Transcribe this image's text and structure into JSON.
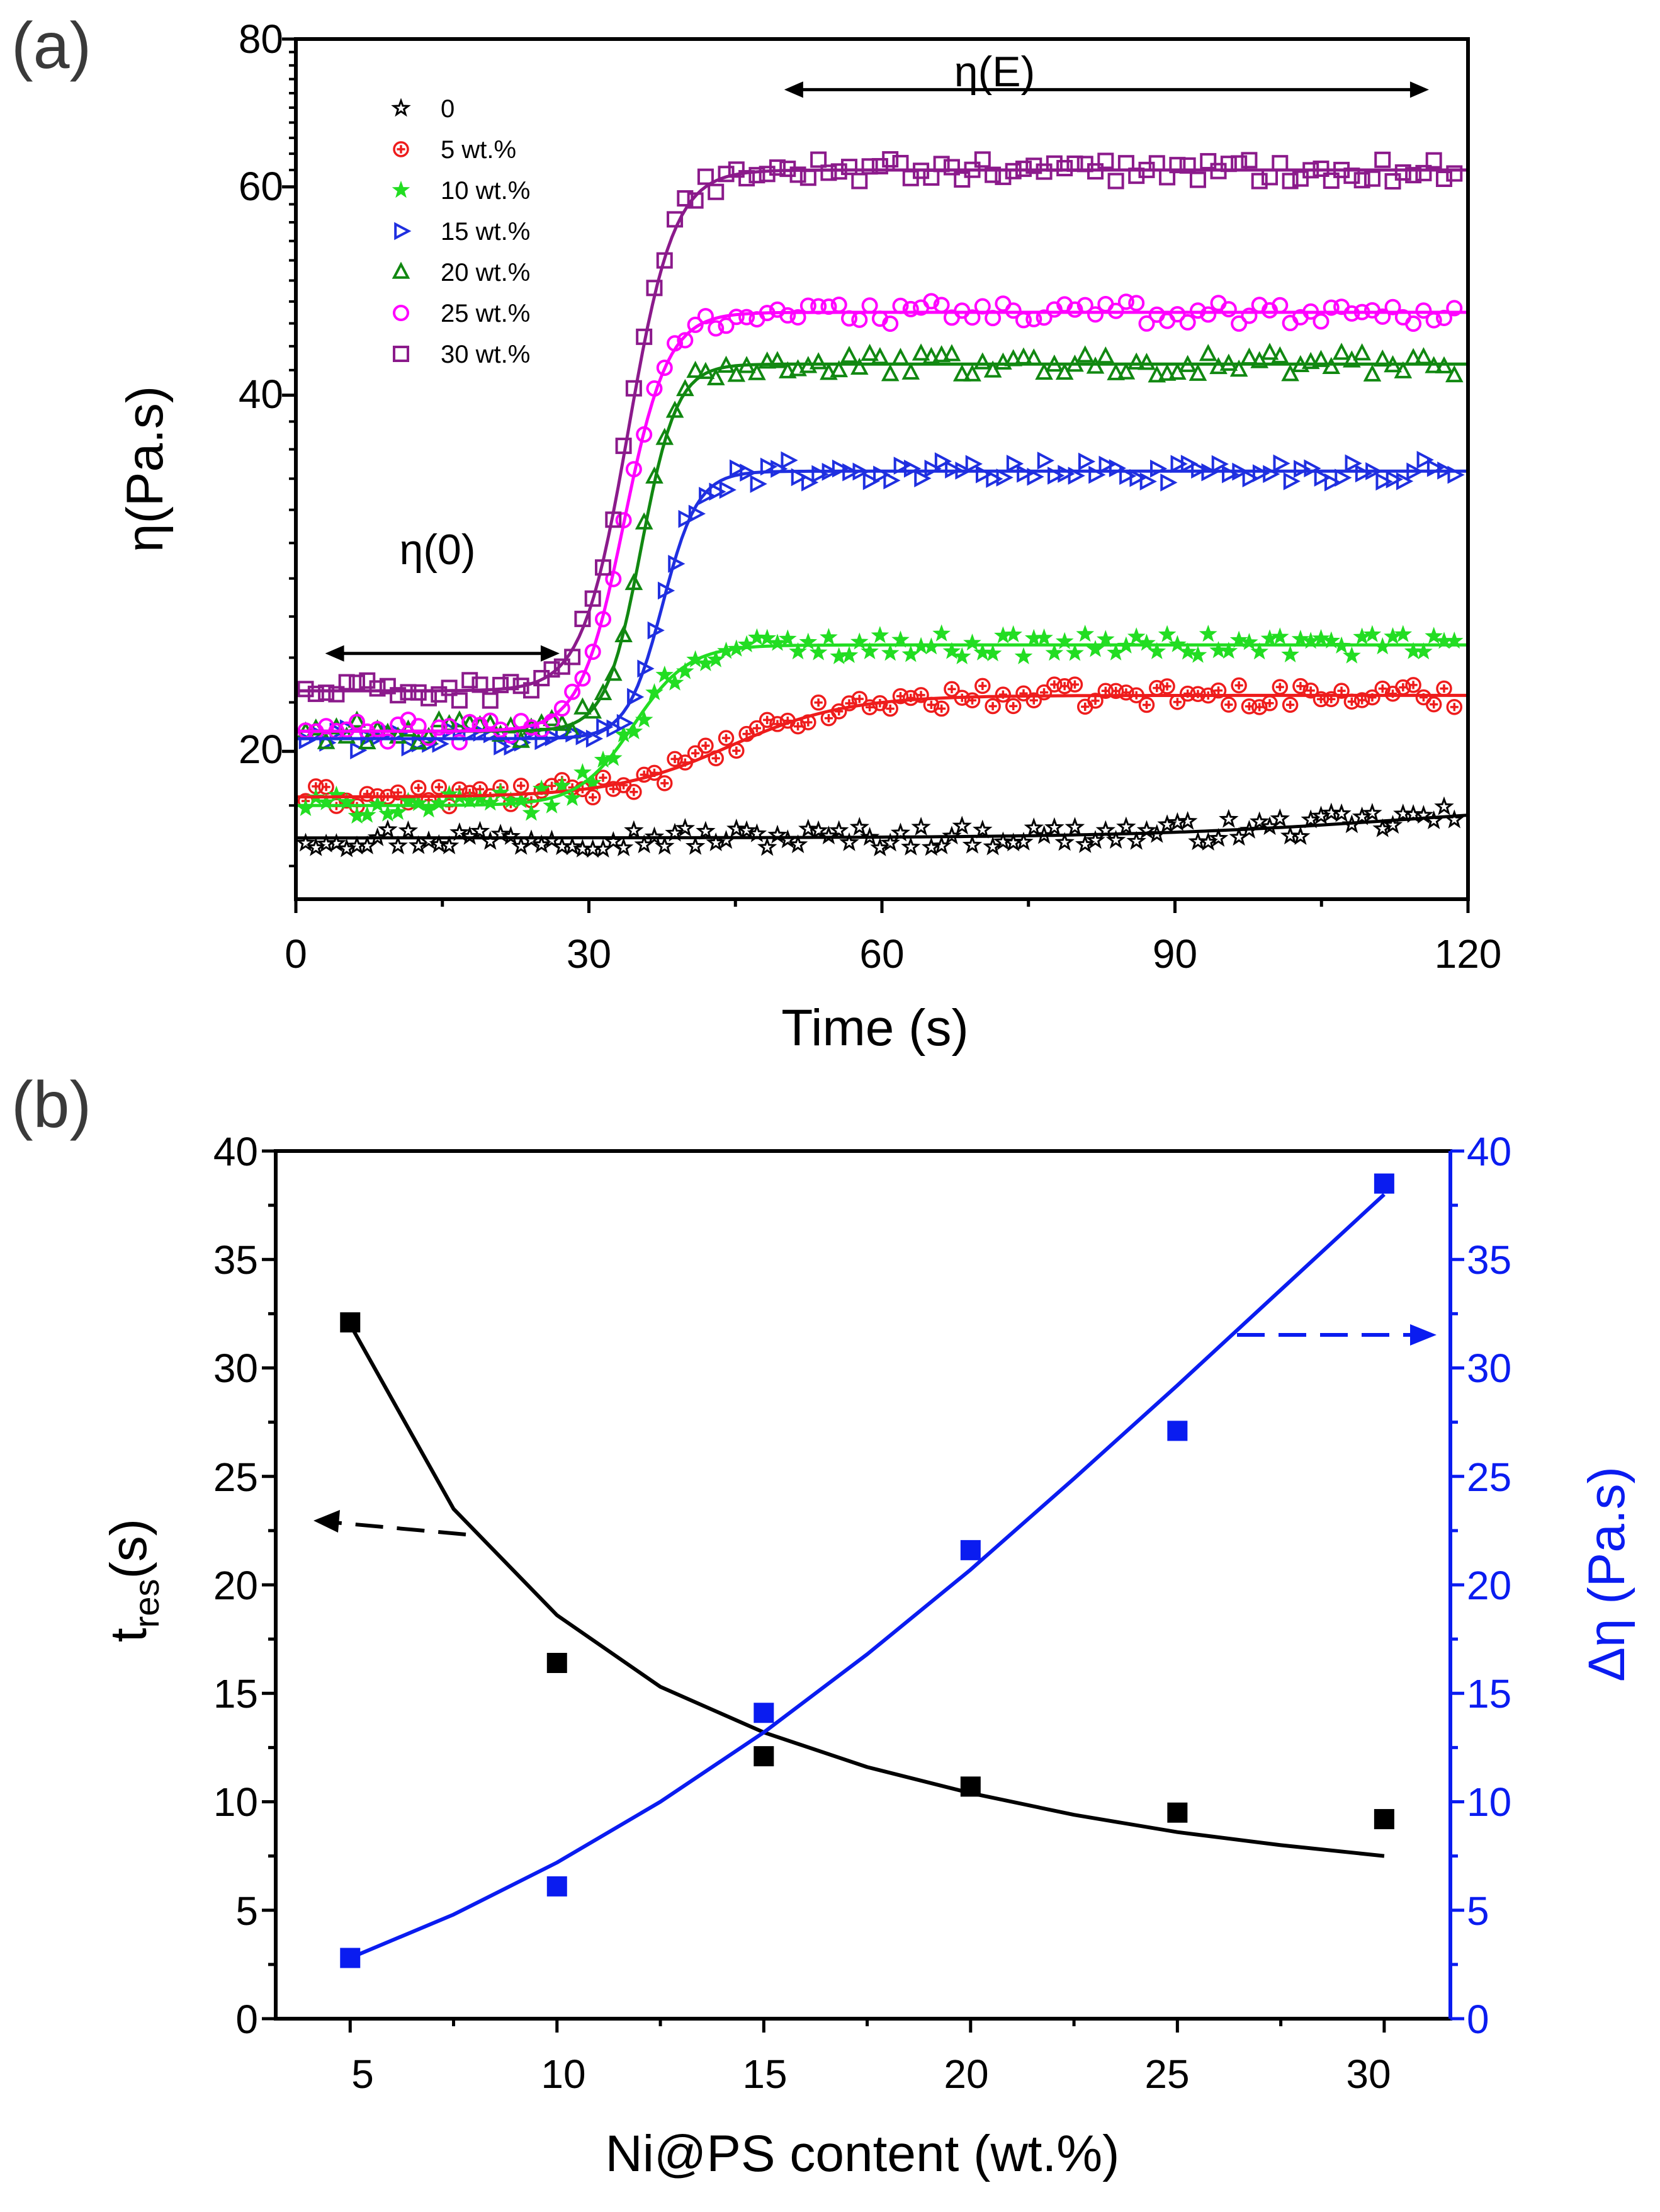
{
  "panel_labels": {
    "a": "(a)",
    "b": "(b)"
  },
  "colors": {
    "s0": "#000000",
    "s5": "#ee1c1c",
    "s10": "#22dd22",
    "s15": "#1f2fe0",
    "s20": "#118811",
    "s25": "#ff00ff",
    "s30": "#8b1a8b",
    "tres": "#000000",
    "deta": "#0a1cf0"
  },
  "chart_data": [
    {
      "type": "scatter",
      "panel": "(a)",
      "xlabel": "Time (s)",
      "ylabel": "η(Pa.s)",
      "xlim": [
        0,
        120
      ],
      "ylim": [
        15,
        80
      ],
      "y_scale": "log",
      "x_ticks": [
        "0",
        "30",
        "60",
        "90",
        "120"
      ],
      "y_ticks": [
        "20",
        "40",
        "60",
        "80"
      ],
      "legend_position": "top-left",
      "annotations": [
        {
          "text": "η(0)",
          "x_range": [
            3,
            27
          ],
          "y": 24.2
        },
        {
          "text": "η(E)",
          "x_range": [
            50,
            116
          ],
          "y": 72.5
        }
      ],
      "series": [
        {
          "name": "0",
          "marker": "star-open",
          "color": "#000000",
          "fit": {
            "base": 16.9,
            "plateau": 18.2,
            "t0": 115,
            "w": 14
          }
        },
        {
          "name": "5 wt.%",
          "marker": "circle-plus",
          "color": "#ee1c1c",
          "fit": {
            "base": 18.3,
            "plateau": 22.3,
            "t0": 45,
            "w": 6
          }
        },
        {
          "name": "10 wt.%",
          "marker": "star-filled",
          "color": "#22dd22",
          "fit": {
            "base": 18.0,
            "plateau": 24.6,
            "t0": 35,
            "w": 2.8
          }
        },
        {
          "name": "15 wt.%",
          "marker": "triangle-right",
          "color": "#1f2fe0",
          "fit": {
            "base": 20.5,
            "plateau": 34.5,
            "t0": 38,
            "w": 1.8
          }
        },
        {
          "name": "20 wt.%",
          "marker": "triangle-up",
          "color": "#118811",
          "fit": {
            "base": 20.8,
            "plateau": 42.5,
            "t0": 36,
            "w": 1.8
          }
        },
        {
          "name": "25 wt.%",
          "marker": "circle-open",
          "color": "#ff00ff",
          "fit": {
            "base": 20.8,
            "plateau": 47.0,
            "t0": 34.5,
            "w": 2.2
          }
        },
        {
          "name": "30 wt.%",
          "marker": "square-open",
          "color": "#8b1a8b",
          "fit": {
            "base": 22.5,
            "plateau": 62.0,
            "t0": 35.2,
            "w": 2.3
          }
        }
      ]
    },
    {
      "type": "scatter",
      "panel": "(b)",
      "xlabel": "Ni@PS content (wt.%)",
      "ylabel_left": "tres(s)",
      "ylabel_right": "Δη (Pa.s)",
      "xlim": [
        3.2,
        31.6
      ],
      "ylim_left": [
        0,
        40
      ],
      "ylim_right": [
        0,
        40
      ],
      "x_ticks": [
        "5",
        "10",
        "15",
        "20",
        "25",
        "30"
      ],
      "y_ticks": [
        "0",
        "5",
        "10",
        "15",
        "20",
        "25",
        "30",
        "35",
        "40"
      ],
      "x": [
        5,
        10,
        15,
        20,
        25,
        30
      ],
      "series": [
        {
          "name": "tres",
          "axis": "left",
          "color": "#000000",
          "values": [
            32.1,
            16.4,
            12.1,
            10.7,
            9.5,
            9.2
          ],
          "fit": [
            [
              5,
              32.0
            ],
            [
              7.5,
              23.5
            ],
            [
              10,
              18.6
            ],
            [
              12.5,
              15.3
            ],
            [
              15,
              13.2
            ],
            [
              17.5,
              11.6
            ],
            [
              20,
              10.4
            ],
            [
              22.5,
              9.4
            ],
            [
              25,
              8.6
            ],
            [
              27.5,
              8.0
            ],
            [
              30,
              7.5
            ]
          ]
        },
        {
          "name": "Δη",
          "axis": "right",
          "color": "#0a1cf0",
          "values": [
            2.8,
            6.1,
            14.1,
            21.6,
            27.1,
            38.5
          ],
          "fit": [
            [
              5,
              2.8
            ],
            [
              7.5,
              4.8
            ],
            [
              10,
              7.2
            ],
            [
              12.5,
              10.0
            ],
            [
              15,
              13.2
            ],
            [
              17.5,
              16.8
            ],
            [
              20,
              20.7
            ],
            [
              22.5,
              24.9
            ],
            [
              25,
              29.2
            ],
            [
              27.5,
              33.6
            ],
            [
              30,
              38.0
            ]
          ]
        }
      ]
    }
  ]
}
